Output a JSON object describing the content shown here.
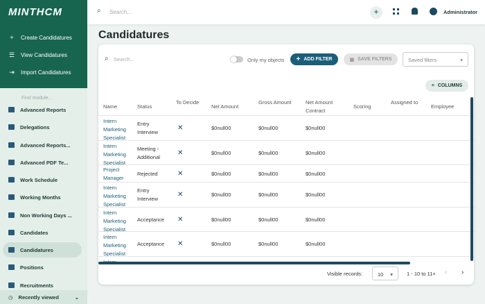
{
  "brand": "MINTHCM",
  "sidebar": {
    "actions": [
      "Create Candidatures",
      "View Candidatures",
      "Import Candidatures"
    ],
    "search_placeholder": "Find module...",
    "modules": [
      "Advanced Reports",
      "Delegations",
      "Advanced Reports...",
      "Advanced PDF Te...",
      "Work Schedule",
      "Working Months",
      "Non Working Days ...",
      "Candidates",
      "Candidatures",
      "Positions",
      "Recruitments"
    ],
    "recently_viewed": "Recently viewed"
  },
  "topbar": {
    "search_placeholder": "Search...",
    "user": "Administrator"
  },
  "page": {
    "title": "Candidatures"
  },
  "toolbar": {
    "search_placeholder": "Search...",
    "only_my_objects": "Only my objects",
    "add_filter": "ADD FILTER",
    "save_filters": "SAVE FILTERS",
    "saved_filters": "Saved filters",
    "columns": "COLUMNS"
  },
  "table": {
    "headers": [
      "Name",
      "Status",
      "To Decide",
      "Net Amount",
      "Gross Amount",
      "Net Amount Contract",
      "Scoring",
      "Assigned to",
      "Employee"
    ],
    "rows": [
      {
        "name": "Intern Marketing Specialist",
        "status": "Entry Interview",
        "net_amount": "$0null00",
        "gross_amount": "$0null00",
        "net_amount_contract": "$0null00"
      },
      {
        "name": "Intern Marketing Specialist",
        "status": "Meeting - Additional",
        "net_amount": "$0null00",
        "gross_amount": "$0null00",
        "net_amount_contract": "$0null00"
      },
      {
        "name": "Project Manager",
        "status": "Rejected",
        "net_amount": "$0null00",
        "gross_amount": "$0null00",
        "net_amount_contract": "$0null00"
      },
      {
        "name": "Intern Marketing Specialist",
        "status": "Entry Interview",
        "net_amount": "$0null00",
        "gross_amount": "$0null00",
        "net_amount_contract": "$0null00"
      },
      {
        "name": "Intern Marketing Specialist",
        "status": "Acceptance",
        "net_amount": "$0null00",
        "gross_amount": "$0null00",
        "net_amount_contract": "$0null00"
      },
      {
        "name": "Intern Marketing Specialist",
        "status": "Acceptance",
        "net_amount": "$0null00",
        "gross_amount": "$0null00",
        "net_amount_contract": "$0null00"
      },
      {
        "name": "Intern"
      }
    ]
  },
  "footer": {
    "visible_records_label": "Visible records:",
    "visible_records": 10,
    "range": "1 - 10 to 11+"
  }
}
